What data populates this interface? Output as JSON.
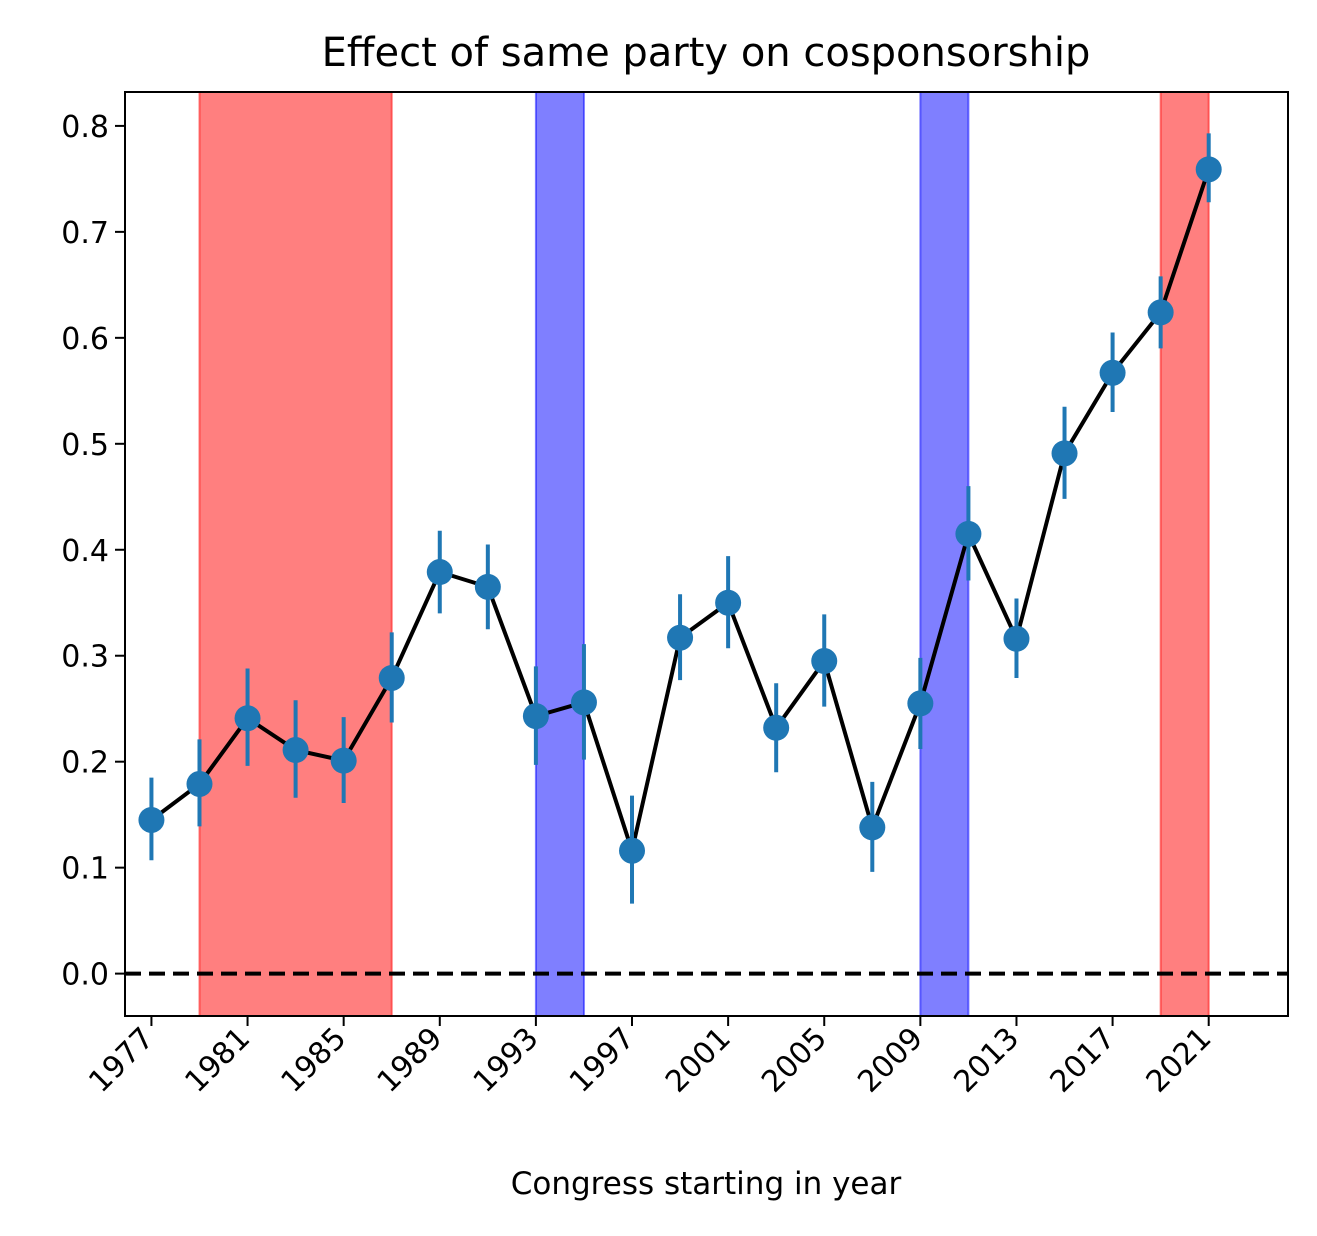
{
  "chart_data": {
    "type": "line",
    "title": "Effect of same party on cosponsorship",
    "xlabel": "Congress starting in year",
    "ylabel": "",
    "xlim": [
      1975.9,
      2024.3
    ],
    "ylim": [
      -0.04,
      0.832
    ],
    "x_ticks": [
      1977,
      1981,
      1985,
      1989,
      1993,
      1997,
      2001,
      2005,
      2009,
      2013,
      2017,
      2021
    ],
    "y_ticks": [
      0.0,
      0.1,
      0.2,
      0.3,
      0.4,
      0.5,
      0.6,
      0.7,
      0.8
    ],
    "grid": false,
    "series": [
      {
        "x": [
          1977,
          1979,
          1981,
          1983,
          1985,
          1987,
          1989,
          1991,
          1993,
          1995,
          1997,
          1999,
          2001,
          2003,
          2005,
          2007,
          2009,
          2011,
          2013,
          2015,
          2017,
          2019,
          2021
        ],
        "y": [
          0.145,
          0.179,
          0.241,
          0.211,
          0.201,
          0.279,
          0.379,
          0.365,
          0.243,
          0.256,
          0.116,
          0.317,
          0.35,
          0.232,
          0.295,
          0.138,
          0.255,
          0.415,
          0.316,
          0.491,
          0.567,
          0.624,
          0.759
        ],
        "err_low": [
          0.107,
          0.139,
          0.196,
          0.166,
          0.161,
          0.237,
          0.34,
          0.325,
          0.197,
          0.202,
          0.066,
          0.277,
          0.307,
          0.19,
          0.252,
          0.096,
          0.212,
          0.371,
          0.279,
          0.448,
          0.53,
          0.59,
          0.728
        ],
        "err_high": [
          0.185,
          0.221,
          0.288,
          0.258,
          0.242,
          0.322,
          0.418,
          0.405,
          0.29,
          0.311,
          0.168,
          0.358,
          0.394,
          0.274,
          0.339,
          0.181,
          0.298,
          0.46,
          0.354,
          0.535,
          0.605,
          0.658,
          0.793
        ],
        "color": "#1f77b4",
        "line_color": "#000000"
      }
    ],
    "bands": [
      {
        "x0": 1979,
        "x1": 1987,
        "color": "#ff0000",
        "opacity": 0.5
      },
      {
        "x0": 1993,
        "x1": 1995,
        "color": "#0000ff",
        "opacity": 0.5
      },
      {
        "x0": 2009,
        "x1": 2011,
        "color": "#0000ff",
        "opacity": 0.5
      },
      {
        "x0": 2019,
        "x1": 2021,
        "color": "#ff0000",
        "opacity": 0.5
      }
    ],
    "reference_line": {
      "y": 0.0,
      "style": "dashed",
      "color": "#000000"
    }
  }
}
